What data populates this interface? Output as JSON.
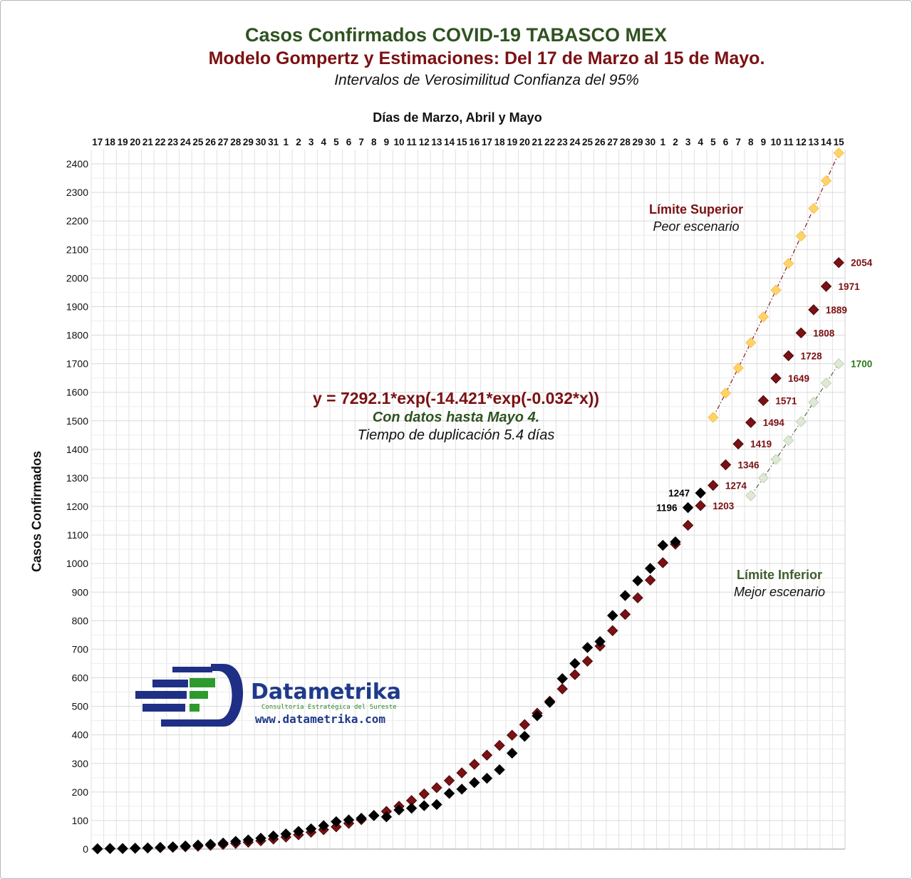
{
  "chart_data": {
    "type": "scatter",
    "title": "Casos Confirmados COVID-19 TABASCO MEX",
    "subtitle": "Modelo Gompertz y Estimaciones: Del 17 de Marzo al 15 de Mayo.",
    "subtitle2": "Intervalos de Verosimilitud Confianza del 95%",
    "xlabel": "Días de Marzo, Abril y Mayo",
    "ylabel": "Casos Confirmados",
    "x_ticks": [
      "17",
      "18",
      "19",
      "20",
      "21",
      "22",
      "23",
      "24",
      "25",
      "26",
      "27",
      "28",
      "29",
      "30",
      "31",
      "1",
      "2",
      "3",
      "4",
      "5",
      "6",
      "7",
      "8",
      "9",
      "10",
      "11",
      "12",
      "13",
      "14",
      "15",
      "16",
      "17",
      "18",
      "19",
      "20",
      "21",
      "22",
      "23",
      "24",
      "25",
      "26",
      "27",
      "28",
      "29",
      "30",
      "1",
      "2",
      "3",
      "4",
      "5",
      "6",
      "7",
      "8",
      "9",
      "10",
      "11",
      "12",
      "13",
      "14",
      "15"
    ],
    "x_axis_position": "top",
    "y_ticks": [
      0,
      100,
      200,
      300,
      400,
      500,
      600,
      700,
      800,
      900,
      1000,
      1100,
      1200,
      1300,
      1400,
      1500,
      1600,
      1700,
      1800,
      1900,
      2000,
      2100,
      2200,
      2300,
      2400
    ],
    "ylim": [
      0,
      2450
    ],
    "grid": true,
    "series": [
      {
        "color": "#000000",
        "marker": "diamond",
        "x": [
          0,
          1,
          2,
          3,
          4,
          5,
          6,
          7,
          8,
          9,
          10,
          11,
          12,
          13,
          14,
          15,
          16,
          17,
          18,
          19,
          20,
          21,
          22,
          23,
          24,
          25,
          26,
          27,
          28,
          29,
          30,
          31,
          32,
          33,
          34,
          35,
          36,
          37,
          38,
          39,
          40,
          41,
          42,
          43,
          44,
          45,
          46,
          47,
          48
        ],
        "values": [
          1,
          2,
          2,
          3,
          4,
          6,
          8,
          11,
          14,
          17,
          21,
          27,
          32,
          38,
          46,
          53,
          62,
          71,
          82,
          96,
          102,
          108,
          118,
          113,
          137,
          143,
          152,
          156,
          195,
          210,
          233,
          248,
          278,
          336,
          395,
          467,
          514,
          597,
          650,
          706,
          727,
          818,
          888,
          940,
          983,
          1064,
          1076,
          1196,
          1247
        ]
      },
      {
        "color": "#7b1113",
        "marker": "diamond",
        "x": [
          0,
          1,
          2,
          3,
          4,
          5,
          6,
          7,
          8,
          9,
          10,
          11,
          12,
          13,
          14,
          15,
          16,
          17,
          18,
          19,
          20,
          21,
          22,
          23,
          24,
          25,
          26,
          27,
          28,
          29,
          30,
          31,
          32,
          33,
          34,
          35,
          36,
          37,
          38,
          39,
          40,
          41,
          42,
          43,
          44,
          45,
          46,
          47,
          48,
          49,
          50,
          51,
          52,
          53,
          54,
          55,
          56,
          57,
          58,
          59
        ],
        "values": [
          1,
          2,
          2,
          3,
          4,
          5,
          6,
          8,
          10,
          13,
          16,
          20,
          24,
          29,
          35,
          42,
          50,
          59,
          68,
          78,
          90,
          103,
          117,
          132,
          150,
          170,
          193,
          215,
          240,
          267,
          297,
          329,
          363,
          399,
          436,
          476,
          518,
          561,
          611,
          658,
          711,
          765,
          822,
          880,
          942,
          1003,
          1068,
          1134,
          1203,
          1274,
          1346,
          1419,
          1494,
          1571,
          1649,
          1728,
          1808,
          1889,
          1971,
          2054
        ],
        "point_labels": {
          "48": "1203",
          "49": "1274",
          "50": "1346",
          "51": "1419",
          "52": "1494",
          "53": "1571",
          "54": "1649",
          "55": "1728",
          "56": "1808",
          "57": "1889",
          "58": "1971",
          "59": "2054"
        }
      },
      {
        "color": "#ffd36a",
        "marker": "diamond",
        "line": "dash-dot",
        "x": [
          49,
          50,
          51,
          52,
          53,
          54,
          55,
          56,
          57,
          58,
          59
        ],
        "values": [
          1512,
          1597,
          1685,
          1774,
          1864,
          1958,
          2051,
          2147,
          2244,
          2341,
          2438
        ]
      },
      {
        "color": "#dfe9d6",
        "marker": "diamond",
        "line": "dash-dot",
        "x": [
          52,
          53,
          54,
          55,
          56,
          57,
          58,
          59
        ],
        "values": [
          1238,
          1300,
          1365,
          1431,
          1497,
          1565,
          1632,
          1700
        ],
        "point_labels": {
          "59": "1700"
        }
      }
    ],
    "black_labels": [
      {
        "x": 47,
        "text": "1196"
      },
      {
        "x": 48,
        "text": "1247"
      }
    ],
    "annotations": {
      "upper_title": "Límite Superior",
      "upper_sub": "Peor escenario",
      "lower_title": "Límite Inferior",
      "lower_sub": "Mejor escenario",
      "equation": "y = 7292.1*exp(-14.421*exp(-0.032*x))",
      "equation_note": "Con datos hasta Mayo 4.",
      "doubling": "Tiempo de duplicación 5.4 días"
    }
  },
  "logo": {
    "name": "Datametrika",
    "tagline": "Consultoría Estratégica del Sureste",
    "url": "www.datametrika.com",
    "colors": {
      "navy": "#1f2f86",
      "green": "#2e9a2e"
    }
  }
}
